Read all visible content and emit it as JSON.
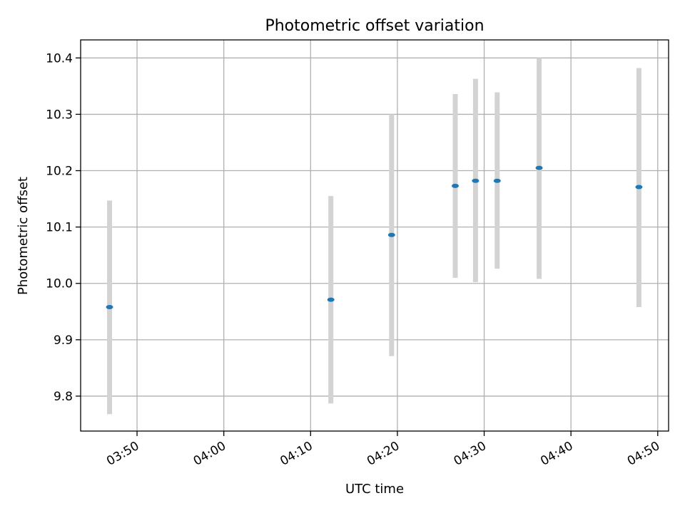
{
  "chart_data": {
    "type": "scatter",
    "title": "Photometric offset variation",
    "xlabel": "UTC time",
    "ylabel": "Photometric offset",
    "xlim": [
      "03:43:30",
      "04:51:15"
    ],
    "ylim": [
      9.738,
      10.432
    ],
    "x_ticks": [
      "03:50",
      "04:00",
      "04:10",
      "04:20",
      "04:30",
      "04:40",
      "04:50"
    ],
    "y_ticks": [
      "9.8",
      "9.9",
      "10.0",
      "10.1",
      "10.2",
      "10.3",
      "10.4"
    ],
    "grid": true,
    "marker_color": "#1f77b4",
    "errorbar_color": "#d3d3d3",
    "points": [
      {
        "x": "03:46:50",
        "y": 9.958,
        "yerr_low": 9.768,
        "yerr_high": 10.147
      },
      {
        "x": "04:12:20",
        "y": 9.971,
        "yerr_low": 9.787,
        "yerr_high": 10.155
      },
      {
        "x": "04:19:20",
        "y": 10.086,
        "yerr_low": 9.871,
        "yerr_high": 10.3
      },
      {
        "x": "04:26:40",
        "y": 10.173,
        "yerr_low": 10.01,
        "yerr_high": 10.336
      },
      {
        "x": "04:29:00",
        "y": 10.182,
        "yerr_low": 10.002,
        "yerr_high": 10.363
      },
      {
        "x": "04:31:30",
        "y": 10.182,
        "yerr_low": 10.026,
        "yerr_high": 10.339
      },
      {
        "x": "04:36:20",
        "y": 10.205,
        "yerr_low": 10.008,
        "yerr_high": 10.4
      },
      {
        "x": "04:47:50",
        "y": 10.171,
        "yerr_low": 9.958,
        "yerr_high": 10.382
      }
    ]
  }
}
